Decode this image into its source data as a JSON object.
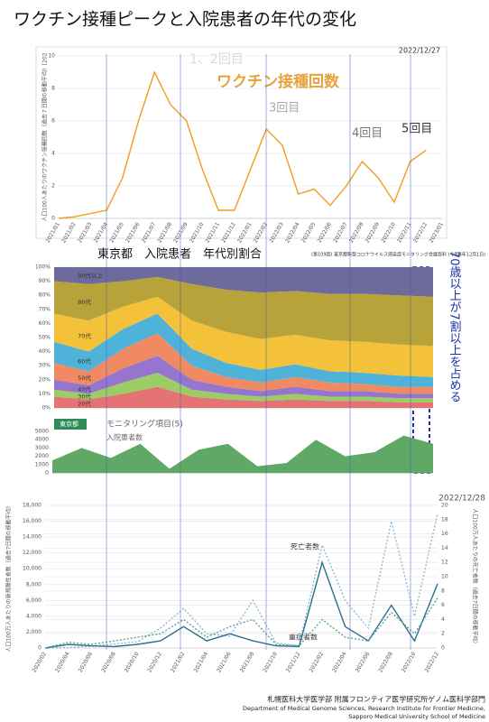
{
  "title": "ワクチン接種ピークと入院患者の年代の変化",
  "chart_data": [
    {
      "type": "line",
      "date": "2022/12/27",
      "ylabel": "人口100人あたりのワクチン接種回数（過去７日間の移動平均）[202",
      "annotations": [
        "1、2回目",
        "ワクチン接種回数",
        "3回目",
        "4回目",
        "5回目"
      ],
      "categories": [
        "2021/01",
        "2021/02",
        "2021/03",
        "2021/04",
        "2021/05",
        "2021/06",
        "2021/07",
        "2021/08",
        "2021/09",
        "2021/10",
        "2021/11",
        "2021/12",
        "2022/01",
        "2022/02",
        "2022/03",
        "2022/04",
        "2022/05",
        "2022/06",
        "2022/07",
        "2022/08",
        "2022/09",
        "2022/10",
        "2022/11",
        "2022/12",
        "2023/01"
      ],
      "series": [
        {
          "color": "#f39c1f",
          "values": [
            0,
            0.1,
            0.3,
            0.5,
            2.5,
            6,
            9,
            7,
            6,
            3,
            0.5,
            0.5,
            3,
            5.5,
            4.5,
            1.5,
            1.8,
            0.8,
            2,
            3.5,
            2.5,
            1,
            3.5,
            4.2,
            null
          ]
        }
      ],
      "ylim": [
        0,
        10
      ],
      "yticks": [
        0,
        2,
        4,
        6,
        8,
        10
      ],
      "grid": true
    },
    {
      "type": "stacked-area",
      "title": "東京都　入院患者　年代別割合",
      "source": "(第109回) 東京都新型コロナウイルス感染症モニタリング会議資料 (令和4年12月1日)",
      "annotations": [
        "70歳以上が7割以上を占める"
      ],
      "categories": [
        null,
        null,
        null,
        null,
        null,
        null,
        null,
        null,
        null,
        null,
        null,
        null
      ],
      "series": [
        {
          "name": "20代",
          "color": "#e57373",
          "values": [
            8,
            6,
            10,
            15,
            8,
            6,
            5,
            6,
            5,
            5,
            4,
            4
          ]
        },
        {
          "name": "30代",
          "color": "#9ccc65",
          "values": [
            5,
            4,
            8,
            10,
            5,
            4,
            3,
            4,
            3,
            3,
            3,
            3
          ]
        },
        {
          "name": "40代",
          "color": "#9575cd",
          "values": [
            7,
            6,
            10,
            12,
            7,
            5,
            4,
            5,
            4,
            4,
            3,
            3
          ]
        },
        {
          "name": "50代",
          "color": "#ef8a62",
          "values": [
            12,
            10,
            14,
            16,
            10,
            7,
            6,
            7,
            6,
            5,
            5,
            5
          ]
        },
        {
          "name": "60代",
          "color": "#4fb3d9",
          "values": [
            15,
            14,
            14,
            14,
            12,
            10,
            9,
            9,
            8,
            8,
            8,
            7
          ]
        },
        {
          "name": "70代",
          "color": "#f3c13a",
          "values": [
            20,
            22,
            16,
            12,
            20,
            22,
            22,
            21,
            22,
            22,
            22,
            22
          ]
        },
        {
          "name": "80代",
          "color": "#b8a23a",
          "values": [
            23,
            26,
            18,
            14,
            26,
            30,
            33,
            31,
            33,
            34,
            35,
            35
          ]
        },
        {
          "name": "90代以上",
          "color": "#6d6a9c",
          "values": [
            10,
            12,
            10,
            7,
            12,
            16,
            18,
            17,
            19,
            19,
            20,
            21
          ]
        }
      ],
      "ylim": [
        0,
        100
      ],
      "yticks": [
        {
          "value": 0,
          "label": "0%"
        },
        {
          "value": 10,
          "label": "10%"
        },
        {
          "value": 20,
          "label": "20%"
        },
        {
          "value": 30,
          "label": "30%"
        },
        {
          "value": 40,
          "label": "40%"
        },
        {
          "value": 50,
          "label": "50%"
        },
        {
          "value": 60,
          "label": "60%"
        },
        {
          "value": 70,
          "label": "70%"
        },
        {
          "value": 80,
          "label": "80%"
        },
        {
          "value": 90,
          "label": "90%"
        },
        {
          "value": 100,
          "label": "100%"
        }
      ],
      "grid": true
    },
    {
      "type": "area",
      "badge": "東京都",
      "title": "モニタリング項目(5)",
      "subtitle": "入院患者数",
      "categories": [
        null,
        null,
        null,
        null,
        null,
        null,
        null,
        null,
        null,
        null,
        null,
        null,
        null,
        null
      ],
      "series": [
        {
          "color": "#5fa866",
          "values": [
            1500,
            3000,
            1800,
            3500,
            500,
            2800,
            3500,
            800,
            1200,
            4000,
            2000,
            2500,
            4500,
            3500
          ]
        }
      ],
      "ylim": [
        0,
        5000
      ],
      "yticks": [
        0,
        1000,
        2000,
        3000,
        4000,
        5000
      ],
      "grid": false
    },
    {
      "type": "line",
      "date": "2022/12/28",
      "ylabel": "人口100万人あたりの新規陽性者数（過去7日間の移動平均）",
      "y2label": "人口100万人あたりの死亡者数（過去7日間の移動平均）",
      "annotations": [
        "死亡者数",
        "重症者数"
      ],
      "categories": [
        "2020/02",
        "2020/04",
        "2020/06",
        "2020/08",
        "2020/10",
        "2020/12",
        "2021/02",
        "2021/04",
        "2021/06",
        "2021/08",
        "2021/10",
        "2021/12",
        "2022/02",
        "2022/04",
        "2022/06",
        "2022/08",
        "2022/10",
        "2022/12"
      ],
      "series": [
        {
          "color": "#8fb8d8",
          "values": [
            0,
            50,
            200,
            500,
            800,
            2500,
            5000,
            1800,
            1500,
            6000,
            600,
            300,
            13000,
            6000,
            2500,
            16000,
            4000,
            17000
          ]
        },
        {
          "name": "死亡者数",
          "color": "#2c6e8f",
          "axis": "y2",
          "values": [
            0,
            0.5,
            0.3,
            0.2,
            0.5,
            1,
            3,
            1,
            2,
            1,
            0.3,
            0.2,
            12,
            3,
            1,
            6,
            1,
            9
          ]
        },
        {
          "name": "重症者数",
          "color": "#58a58a",
          "axis": "y2",
          "values": [
            0,
            0.8,
            0.5,
            1,
            1.5,
            2,
            4,
            1.5,
            3,
            4,
            0.5,
            0.3,
            4,
            1.5,
            1,
            5,
            2,
            7
          ]
        }
      ],
      "ylim": [
        0,
        18000
      ],
      "yticks": [
        0,
        {
          "value": 2000,
          "label": "2,000"
        },
        {
          "value": 4000,
          "label": "4,000"
        },
        {
          "value": 6000,
          "label": "6,000"
        },
        {
          "value": 8000,
          "label": "8,000"
        },
        {
          "value": 10000,
          "label": "10,000"
        },
        {
          "value": 12000,
          "label": "12,000"
        },
        {
          "value": 14000,
          "label": "14,000"
        },
        {
          "value": 16000,
          "label": "16,000"
        },
        {
          "value": 18000,
          "label": "18,000"
        }
      ],
      "y2lim": [
        0,
        20
      ],
      "y2ticks": [
        0,
        2,
        4,
        6,
        8,
        10,
        12,
        14,
        16,
        18,
        20
      ],
      "grid": true
    }
  ],
  "footer": [
    "札幌医科大学医学部 附属フロンティア医学研究所ゲノム医科学部門",
    "Department of Medical Genome Sciences, Research Institute for Frontier Medicine,",
    "Sapporo Medical University School of Medicine"
  ]
}
